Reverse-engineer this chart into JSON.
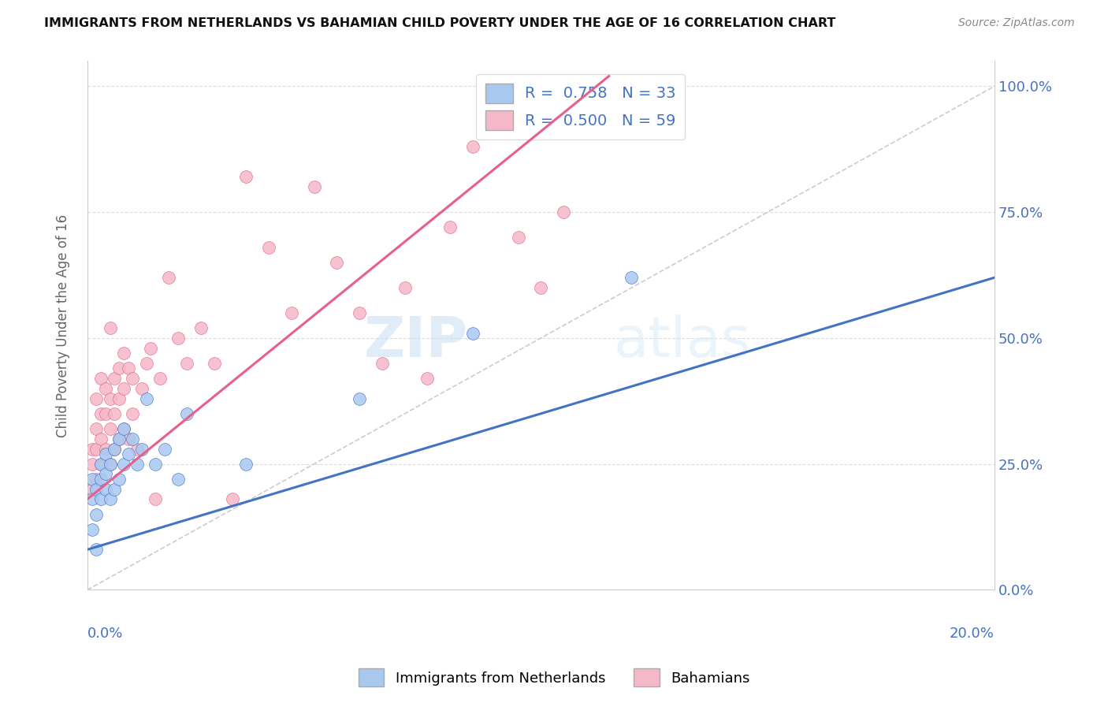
{
  "title": "IMMIGRANTS FROM NETHERLANDS VS BAHAMIAN CHILD POVERTY UNDER THE AGE OF 16 CORRELATION CHART",
  "source": "Source: ZipAtlas.com",
  "ylabel": "Child Poverty Under the Age of 16",
  "legend_label1": "Immigrants from Netherlands",
  "legend_label2": "Bahamians",
  "r1": 0.758,
  "n1": 33,
  "r2": 0.5,
  "n2": 59,
  "color_blue": "#A8C8F0",
  "color_pink": "#F5B8C8",
  "color_blue_line": "#4472C4",
  "color_pink_line": "#E8608A",
  "color_blue_text": "#4472C4",
  "watermark_zip": "ZIP",
  "watermark_atlas": "atlas",
  "xmin": 0.0,
  "xmax": 0.2,
  "ymin": 0.0,
  "ymax": 1.05,
  "blue_x": [
    0.001,
    0.001,
    0.001,
    0.002,
    0.002,
    0.002,
    0.003,
    0.003,
    0.003,
    0.004,
    0.004,
    0.004,
    0.005,
    0.005,
    0.006,
    0.006,
    0.007,
    0.007,
    0.008,
    0.008,
    0.009,
    0.01,
    0.011,
    0.012,
    0.013,
    0.015,
    0.017,
    0.02,
    0.022,
    0.035,
    0.06,
    0.085,
    0.12
  ],
  "blue_y": [
    0.12,
    0.18,
    0.22,
    0.08,
    0.15,
    0.2,
    0.18,
    0.22,
    0.25,
    0.2,
    0.23,
    0.27,
    0.18,
    0.25,
    0.2,
    0.28,
    0.22,
    0.3,
    0.25,
    0.32,
    0.27,
    0.3,
    0.25,
    0.28,
    0.38,
    0.25,
    0.28,
    0.22,
    0.35,
    0.25,
    0.38,
    0.51,
    0.62
  ],
  "pink_x": [
    0.001,
    0.001,
    0.001,
    0.002,
    0.002,
    0.002,
    0.002,
    0.003,
    0.003,
    0.003,
    0.003,
    0.004,
    0.004,
    0.004,
    0.005,
    0.005,
    0.005,
    0.005,
    0.006,
    0.006,
    0.006,
    0.007,
    0.007,
    0.007,
    0.008,
    0.008,
    0.008,
    0.009,
    0.009,
    0.01,
    0.01,
    0.011,
    0.012,
    0.013,
    0.014,
    0.015,
    0.016,
    0.018,
    0.02,
    0.022,
    0.025,
    0.028,
    0.032,
    0.035,
    0.04,
    0.045,
    0.05,
    0.055,
    0.06,
    0.065,
    0.07,
    0.075,
    0.08,
    0.085,
    0.09,
    0.095,
    0.1,
    0.105,
    0.11
  ],
  "pink_y": [
    0.2,
    0.25,
    0.28,
    0.22,
    0.28,
    0.32,
    0.38,
    0.25,
    0.3,
    0.35,
    0.42,
    0.28,
    0.35,
    0.4,
    0.25,
    0.32,
    0.38,
    0.52,
    0.28,
    0.35,
    0.42,
    0.3,
    0.38,
    0.44,
    0.32,
    0.4,
    0.47,
    0.3,
    0.44,
    0.35,
    0.42,
    0.28,
    0.4,
    0.45,
    0.48,
    0.18,
    0.42,
    0.62,
    0.5,
    0.45,
    0.52,
    0.45,
    0.18,
    0.82,
    0.68,
    0.55,
    0.8,
    0.65,
    0.55,
    0.45,
    0.6,
    0.42,
    0.72,
    0.88,
    0.92,
    0.7,
    0.6,
    0.75,
    0.98
  ],
  "blue_line_x0": 0.0,
  "blue_line_y0": 0.08,
  "blue_line_x1": 0.2,
  "blue_line_y1": 0.62,
  "pink_line_x0": 0.0,
  "pink_line_y0": 0.18,
  "pink_line_x1": 0.115,
  "pink_line_y1": 1.02,
  "ytick_values": [
    0.0,
    0.25,
    0.5,
    0.75,
    1.0
  ]
}
